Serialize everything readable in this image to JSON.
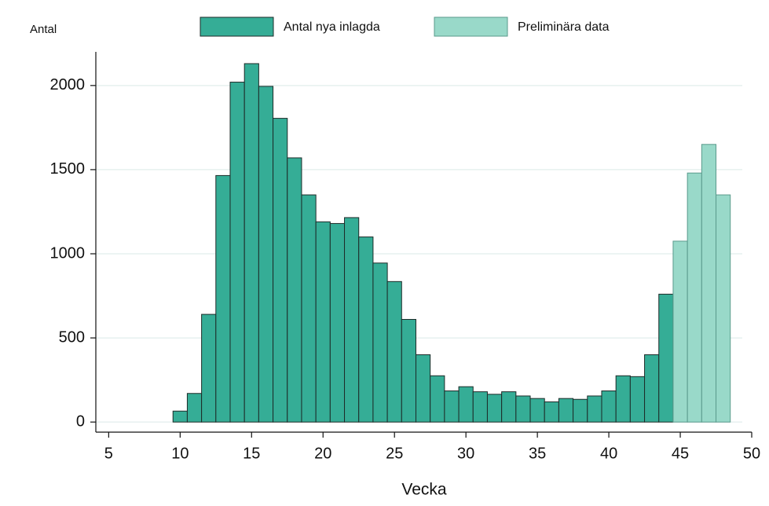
{
  "chart_data": {
    "type": "bar",
    "y_label": "Antal",
    "x_label": "Vecka",
    "x": [
      10,
      11,
      12,
      13,
      14,
      15,
      16,
      17,
      18,
      19,
      20,
      21,
      22,
      23,
      24,
      25,
      26,
      27,
      28,
      29,
      30,
      31,
      32,
      33,
      34,
      35,
      36,
      37,
      38,
      39,
      40,
      41,
      42,
      43,
      44,
      45,
      46,
      47,
      48
    ],
    "series": [
      {
        "name": "Antal nya inlagda",
        "color": "#35ad96",
        "values": [
          65,
          170,
          640,
          1465,
          2020,
          2130,
          1995,
          1805,
          1570,
          1350,
          1190,
          1180,
          1215,
          1100,
          945,
          835,
          610,
          400,
          275,
          185,
          210,
          180,
          165,
          180,
          155,
          140,
          120,
          140,
          135,
          155,
          185,
          275,
          270,
          400,
          760,
          null,
          null,
          null,
          null
        ]
      },
      {
        "name": "Preliminära data",
        "color": "#99d9c9",
        "values": [
          null,
          null,
          null,
          null,
          null,
          null,
          null,
          null,
          null,
          null,
          null,
          null,
          null,
          null,
          null,
          null,
          null,
          null,
          null,
          null,
          null,
          null,
          null,
          null,
          null,
          null,
          null,
          null,
          null,
          null,
          null,
          null,
          null,
          null,
          null,
          1075,
          1480,
          1650,
          1350
        ]
      }
    ],
    "xlim": [
      4.1,
      50
    ],
    "xticks": [
      5,
      10,
      15,
      20,
      25,
      30,
      35,
      40,
      45,
      50
    ],
    "ylim": [
      -60,
      2200
    ],
    "yticks": [
      0,
      500,
      1000,
      1500,
      2000
    ],
    "grid": true
  }
}
